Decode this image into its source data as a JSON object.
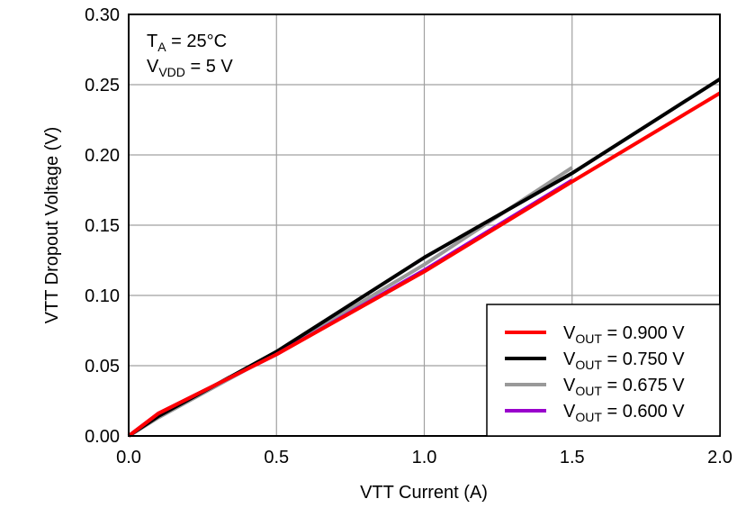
{
  "chart_data": {
    "type": "line",
    "title": "",
    "xlabel": "VTT Current (A)",
    "ylabel": "VTT Dropout Voltage (V)",
    "xlim": [
      0,
      2
    ],
    "ylim": [
      0,
      0.3
    ],
    "xticks": [
      "0.0",
      "0.5",
      "1.0",
      "1.5",
      "2.0"
    ],
    "yticks": [
      "0.00",
      "0.05",
      "0.10",
      "0.15",
      "0.20",
      "0.25",
      "0.30"
    ],
    "grid": true,
    "legend_placement": "bottom-right",
    "annotation": {
      "line1": {
        "main": "T",
        "sub": "A",
        "rest": " = 25°C"
      },
      "line2": {
        "main": "V",
        "sub": "VDD",
        "rest": " = 5 V"
      }
    },
    "series": [
      {
        "name": "VOUT = 0.900 V",
        "label_main": "V",
        "label_sub": "OUT",
        "label_rest": " = 0.900 V",
        "color": "#ff0000",
        "x": [
          0,
          0.1,
          0.5,
          1.0,
          1.5,
          2.0
        ],
        "y": [
          0,
          0.016,
          0.058,
          0.117,
          0.181,
          0.244
        ]
      },
      {
        "name": "VOUT = 0.750 V",
        "label_main": "V",
        "label_sub": "OUT",
        "label_rest": " = 0.750 V",
        "color": "#000000",
        "x": [
          0,
          0.1,
          0.5,
          1.0,
          1.5,
          2.0
        ],
        "y": [
          0,
          0.014,
          0.06,
          0.127,
          0.187,
          0.254
        ]
      },
      {
        "name": "VOUT = 0.675 V",
        "label_main": "V",
        "label_sub": "OUT",
        "label_rest": " = 0.675 V",
        "color": "#999999",
        "x": [
          0,
          0.1,
          0.5,
          1.0,
          1.5
        ],
        "y": [
          0,
          0.013,
          0.059,
          0.122,
          0.191
        ]
      },
      {
        "name": "VOUT = 0.600 V",
        "label_main": "V",
        "label_sub": "OUT",
        "label_rest": " = 0.600 V",
        "color": "#9900cc",
        "x": [
          0,
          0.1,
          0.5,
          1.0,
          1.5
        ],
        "y": [
          0,
          0.016,
          0.058,
          0.118,
          0.182
        ]
      }
    ]
  }
}
